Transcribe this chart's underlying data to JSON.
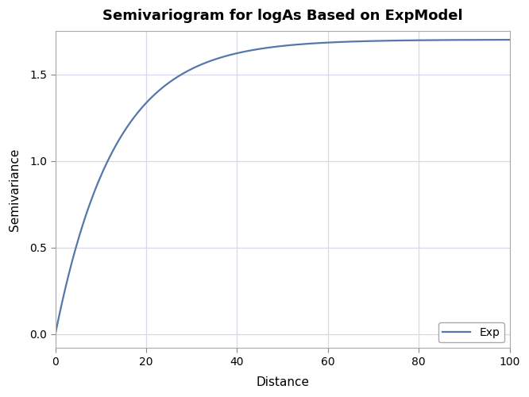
{
  "title": "Semivariogram for logAs Based on ExpModel",
  "xlabel": "Distance",
  "ylabel": "Semivariance",
  "legend_label": "Exp",
  "xlim": [
    0,
    100
  ],
  "ylim": [
    -0.08,
    1.75
  ],
  "nugget": 0.0,
  "sill": 1.7,
  "range_param": 13.0,
  "line_color": "#5577AA",
  "line_width": 1.6,
  "bg_color": "#FFFFFF",
  "plot_bg_color": "#FFFFFF",
  "grid_color": "#D8D8E8",
  "title_fontsize": 13,
  "label_fontsize": 11,
  "tick_fontsize": 10,
  "legend_fontsize": 10,
  "yticks": [
    0.0,
    0.5,
    1.0,
    1.5
  ],
  "xticks": [
    0,
    20,
    40,
    60,
    80,
    100
  ]
}
